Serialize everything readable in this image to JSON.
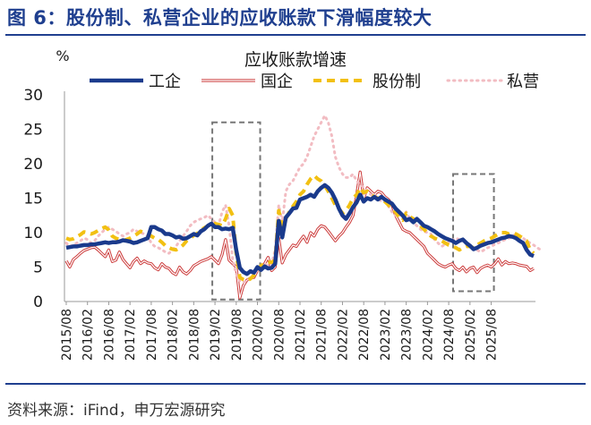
{
  "figure_title": "图 6：股份制、私营企业的应收账款下滑幅度较大",
  "source_note": "资料来源：iFind，申万宏源研究",
  "colors": {
    "title": "#1f3f8f",
    "工业": "#1a3a8c",
    "国企": "#cc3b3b",
    "股份制": "#f2c012",
    "私营": "#f2bcc2",
    "highlight_box": "#777777"
  },
  "chart_data": {
    "type": "line",
    "title": "应收账款增速",
    "ylabel": "%",
    "xlabel": "",
    "ylim": [
      0,
      30
    ],
    "yticks": [
      0,
      5,
      10,
      15,
      20,
      25,
      30
    ],
    "grid": false,
    "legend_position": "top",
    "x_start": "2015/08",
    "x_step": "monthly",
    "x_ticks": [
      "2015/08",
      "2016/02",
      "2016/08",
      "2017/02",
      "2017/08",
      "2018/02",
      "2018/08",
      "2019/02",
      "2019/08",
      "2020/02",
      "2020/08",
      "2021/02",
      "2021/08",
      "2022/02",
      "2022/08",
      "2023/02",
      "2023/08",
      "2024/02",
      "2024/08",
      "2025/02",
      "2025/08"
    ],
    "highlight_ranges": [
      {
        "from": "2019/02",
        "to": "2020/02",
        "ymin": 0.3,
        "ymax": 26
      },
      {
        "from": "2024/10",
        "to": "2025/08",
        "ymin": 1.5,
        "ymax": 18.5
      }
    ],
    "series": [
      {
        "name": "工企",
        "style": "thick-solid",
        "values": [
          7.8,
          7.9,
          8.0,
          8.0,
          8.1,
          8.2,
          8.2,
          8.3,
          8.3,
          8.4,
          8.5,
          8.6,
          8.5,
          8.6,
          8.6,
          8.7,
          8.9,
          8.8,
          8.7,
          8.5,
          8.6,
          8.8,
          9.0,
          9.2,
          10.8,
          10.8,
          10.5,
          10.3,
          9.8,
          9.8,
          9.6,
          9.3,
          9.4,
          9.1,
          9.2,
          9.5,
          9.8,
          9.6,
          10.2,
          10.5,
          11.0,
          11.3,
          10.8,
          10.8,
          10.5,
          10.6,
          10.5,
          10.7,
          7.5,
          4.9,
          4.3,
          4.0,
          4.4,
          4.2,
          5.0,
          4.6,
          5.1,
          4.8,
          4.9,
          5.5,
          11.7,
          9.3,
          12.2,
          12.8,
          13.5,
          13.6,
          14.8,
          15.0,
          15.2,
          15.5,
          15.2,
          16.0,
          16.5,
          16.9,
          16.5,
          15.8,
          14.8,
          13.5,
          12.5,
          12.0,
          12.8,
          13.7,
          14.4,
          15.5,
          14.5,
          15.0,
          14.8,
          15.2,
          14.8,
          15.2,
          14.8,
          14.5,
          14.2,
          13.5,
          13.0,
          12.5,
          11.8,
          12.0,
          11.5,
          12.0,
          11.5,
          11.0,
          10.8,
          10.5,
          10.2,
          9.8,
          9.5,
          9.2,
          9.0,
          8.8,
          8.5,
          8.8,
          9.0,
          8.5,
          8.1,
          7.6,
          7.8,
          8.1,
          8.3,
          8.5,
          8.6,
          8.8,
          9.0,
          9.2,
          9.3,
          9.5,
          9.4,
          9.2,
          8.8,
          8.5,
          7.5,
          6.8,
          6.6
        ]
      },
      {
        "name": "国企",
        "style": "thin-double-line",
        "values": [
          5.9,
          5.0,
          6.1,
          6.5,
          7.0,
          7.4,
          7.6,
          7.8,
          7.9,
          7.5,
          7.0,
          6.5,
          7.5,
          5.8,
          6.0,
          7.2,
          6.1,
          5.5,
          4.9,
          5.8,
          6.3,
          5.5,
          5.9,
          5.6,
          5.5,
          4.9,
          4.6,
          5.5,
          5.0,
          4.8,
          4.2,
          3.9,
          5.0,
          4.3,
          4.0,
          4.5,
          5.2,
          5.5,
          5.8,
          6.0,
          6.2,
          6.5,
          6.0,
          5.5,
          6.8,
          9.0,
          6.0,
          5.5,
          5.0,
          0.5,
          2.3,
          3.1,
          3.4,
          3.5,
          4.5,
          4.7,
          5.5,
          6.4,
          4.5,
          5.0,
          9.2,
          5.6,
          6.8,
          7.5,
          8.2,
          8.0,
          8.8,
          9.5,
          8.6,
          10.0,
          9.5,
          10.5,
          11.0,
          10.8,
          10.2,
          9.5,
          8.8,
          9.5,
          10.0,
          10.8,
          11.5,
          12.5,
          15.5,
          18.8,
          15.0,
          16.5,
          16.0,
          15.5,
          16.0,
          15.8,
          15.2,
          14.8,
          14.0,
          12.5,
          11.5,
          10.5,
          10.2,
          10.0,
          9.5,
          9.0,
          8.5,
          8.0,
          7.0,
          6.5,
          6.0,
          5.5,
          5.2,
          5.0,
          5.3,
          5.5,
          4.8,
          4.5,
          5.0,
          4.3,
          4.8,
          5.0,
          4.2,
          4.8,
          5.1,
          5.3,
          5.0,
          5.5,
          6.2,
          5.3,
          5.8,
          5.5,
          5.6,
          5.5,
          5.3,
          5.2,
          5.1,
          4.5,
          4.8
        ]
      },
      {
        "name": "股份制",
        "style": "thick-dashed",
        "values": [
          9.2,
          9.0,
          9.1,
          9.4,
          9.7,
          10.1,
          10.0,
          9.8,
          10.0,
          10.3,
          10.6,
          10.8,
          10.4,
          9.5,
          9.2,
          9.0,
          8.8,
          9.0,
          9.2,
          9.5,
          9.8,
          10.2,
          10.0,
          9.8,
          9.5,
          9.2,
          9.0,
          8.6,
          8.1,
          7.8,
          7.6,
          7.5,
          7.8,
          8.2,
          8.8,
          9.2,
          9.6,
          9.9,
          10.3,
          10.7,
          11.0,
          11.4,
          11.3,
          11.2,
          11.0,
          12.0,
          13.5,
          12.5,
          7.0,
          3.5,
          3.2,
          3.0,
          3.3,
          3.8,
          4.5,
          5.2,
          5.5,
          5.7,
          5.7,
          6.0,
          13.2,
          11.0,
          12.0,
          13.0,
          13.8,
          14.5,
          15.5,
          16.0,
          17.0,
          17.8,
          18.3,
          17.8,
          17.5,
          16.8,
          16.0,
          15.0,
          14.0,
          13.5,
          12.8,
          13.2,
          14.0,
          15.0,
          15.5,
          16.5,
          15.8,
          16.0,
          15.5,
          15.2,
          15.0,
          14.8,
          14.5,
          14.0,
          13.5,
          13.0,
          12.2,
          11.8,
          12.8,
          12.3,
          12.0,
          11.5,
          11.0,
          10.5,
          10.0,
          9.5,
          9.2,
          9.0,
          8.8,
          8.5,
          8.2,
          8.0,
          7.8,
          7.5,
          7.8,
          8.0,
          8.0,
          7.8,
          8.2,
          8.5,
          8.8,
          9.0,
          9.2,
          9.5,
          9.8,
          10.0,
          10.0,
          9.8,
          10.0,
          9.8,
          9.5,
          9.2,
          8.8,
          7.5,
          7.0
        ]
      },
      {
        "name": "私营",
        "style": "dotted",
        "values": [
          8.5,
          8.0,
          8.2,
          8.5,
          8.8,
          9.2,
          9.0,
          8.5,
          8.8,
          9.5,
          10.0,
          10.5,
          10.8,
          10.5,
          10.2,
          9.8,
          9.5,
          9.8,
          10.0,
          10.5,
          10.2,
          10.0,
          9.8,
          9.5,
          8.5,
          8.0,
          7.8,
          7.5,
          7.2,
          7.0,
          7.5,
          8.0,
          8.8,
          9.5,
          10.2,
          11.0,
          11.5,
          11.8,
          12.0,
          12.2,
          12.5,
          12.0,
          11.5,
          11.0,
          13.0,
          14.0,
          11.0,
          6.0,
          4.0,
          3.0,
          2.8,
          3.0,
          3.5,
          4.0,
          4.5,
          5.0,
          5.5,
          5.2,
          5.5,
          7.5,
          14.0,
          11.5,
          16.0,
          17.0,
          17.5,
          18.5,
          19.5,
          20.0,
          21.0,
          22.5,
          24.0,
          25.0,
          26.0,
          27.0,
          26.0,
          24.0,
          21.0,
          19.5,
          18.5,
          18.0,
          18.0,
          18.5,
          17.5,
          17.0,
          16.5,
          16.0,
          15.5,
          15.5,
          15.0,
          14.5,
          14.5,
          13.8,
          13.0,
          12.5,
          12.5,
          12.5,
          13.0,
          12.0,
          11.5,
          11.0,
          10.5,
          10.2,
          10.0,
          9.8,
          9.0,
          8.5,
          8.0,
          8.3,
          8.6,
          8.9,
          9.2,
          9.0,
          8.8,
          8.5,
          8.2,
          7.8,
          7.5,
          7.2,
          7.5,
          7.8,
          8.0,
          8.3,
          8.5,
          8.8,
          9.0,
          9.2,
          9.5,
          9.8,
          9.5,
          9.2,
          8.8,
          8.5,
          8.2,
          7.8,
          7.5
        ]
      }
    ]
  }
}
